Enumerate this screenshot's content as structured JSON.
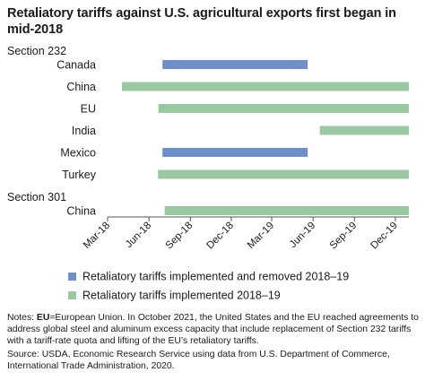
{
  "chart_data": {
    "type": "gantt",
    "title": "Retaliatory tariffs against U.S. agricultural exports first began in mid-2018",
    "groups": [
      {
        "label": "Section 232",
        "rows": [
          "Canada",
          "China",
          "EU",
          "India",
          "Mexico",
          "Turkey"
        ]
      },
      {
        "label": "Section 301",
        "rows": [
          "China"
        ]
      }
    ],
    "bars": [
      {
        "row": "Canada",
        "group": "Section 232",
        "start": "2018-07-01",
        "end": "2019-05-20",
        "series": "removed"
      },
      {
        "row": "China",
        "group": "Section 232",
        "start": "2018-04-02",
        "end": "2019-12-31",
        "series": "implemented"
      },
      {
        "row": "EU",
        "group": "Section 232",
        "start": "2018-06-22",
        "end": "2019-12-31",
        "series": "implemented"
      },
      {
        "row": "India",
        "group": "Section 232",
        "start": "2019-06-16",
        "end": "2019-12-31",
        "series": "implemented"
      },
      {
        "row": "Mexico",
        "group": "Section 232",
        "start": "2018-07-01",
        "end": "2019-05-20",
        "series": "removed"
      },
      {
        "row": "Turkey",
        "group": "Section 232",
        "start": "2018-06-21",
        "end": "2019-12-31",
        "series": "implemented"
      },
      {
        "row": "China",
        "group": "Section 301",
        "start": "2018-07-06",
        "end": "2019-12-31",
        "series": "implemented"
      }
    ],
    "x_ticks": [
      {
        "date": "2018-03-01",
        "label": "Mar-18"
      },
      {
        "date": "2018-06-01",
        "label": "Jun-18"
      },
      {
        "date": "2018-09-01",
        "label": "Sep-18"
      },
      {
        "date": "2018-12-01",
        "label": "Dec-18"
      },
      {
        "date": "2019-03-01",
        "label": "Mar-19"
      },
      {
        "date": "2019-06-01",
        "label": "Jun-19"
      },
      {
        "date": "2019-09-01",
        "label": "Sep-19"
      },
      {
        "date": "2019-12-01",
        "label": "Dec-19"
      }
    ],
    "xlim": [
      "2018-03-01",
      "2019-12-31"
    ],
    "legend": {
      "placement": "bottom",
      "entries": [
        {
          "key": "removed",
          "label": "Retaliatory tariffs implemented and removed 2018–19",
          "color": "#6f8fc9"
        },
        {
          "key": "implemented",
          "label": "Retaliatory tariffs implemented 2018–19",
          "color": "#9bc7a3"
        }
      ]
    },
    "grid": false
  },
  "notes": {
    "prefix": "Notes: ",
    "abbr": "EU",
    "text": "=European Union. In October 2021, the United States and the EU reached agreements to address global steel and aluminum excess capacity that include replacement of Section 232 tariffs with a tariff-rate quota and lifting of the EU’s retaliatory tariffs."
  },
  "source": "Source: USDA, Economic Research Service using data from U.S. Department of Commerce, International Trade Administration, 2020.",
  "colors": {
    "axis": "#555555",
    "text": "#1a1a1a"
  }
}
